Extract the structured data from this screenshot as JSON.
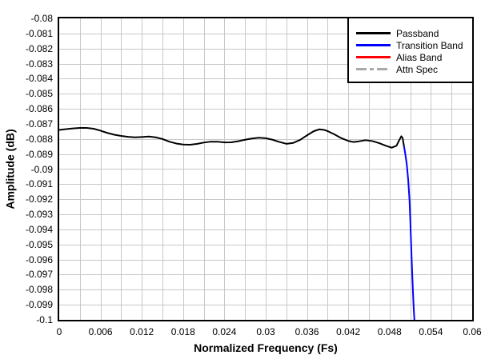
{
  "chart_data": {
    "type": "line",
    "title": "",
    "xlabel": "Normalized Frequency (Fs)",
    "ylabel": "Amplitude (dB)",
    "grid": true,
    "legend_position": "top-right",
    "axes": {
      "x": {
        "min": 0,
        "max": 0.06,
        "grid_step": 0.003,
        "tick_labels": [
          "0",
          "0.006",
          "0.012",
          "0.018",
          "0.024",
          "0.03",
          "0.036",
          "0.042",
          "0.048",
          "0.054",
          "0.06"
        ]
      },
      "y": {
        "min": -0.1,
        "max": -0.08,
        "grid_step": 0.001,
        "tick_labels": [
          "-0.08",
          "-0.081",
          "-0.082",
          "-0.083",
          "-0.084",
          "-0.085",
          "-0.086",
          "-0.087",
          "-0.088",
          "-0.089",
          "-0.09",
          "-0.091",
          "-0.092",
          "-0.093",
          "-0.094",
          "-0.095",
          "-0.096",
          "-0.097",
          "-0.098",
          "-0.099",
          "-0.1"
        ]
      }
    },
    "colors": {
      "grid": "#c8c8c8",
      "axis": "#000000",
      "background": "#ffffff",
      "passband": "#000000",
      "transition": "#0000ff",
      "alias": "#ff0000",
      "attn_spec": "#a9a9a9"
    },
    "legend": [
      {
        "id": "passband",
        "label": "Passband",
        "color": "#000000",
        "dash": "solid"
      },
      {
        "id": "transition",
        "label": "Transition Band",
        "color": "#0000ff",
        "dash": "solid"
      },
      {
        "id": "alias",
        "label": "Alias Band",
        "color": "#ff0000",
        "dash": "solid"
      },
      {
        "id": "attn",
        "label": "Attn Spec",
        "color": "#a9a9a9",
        "dash": "dashdot"
      }
    ],
    "series": [
      {
        "id": "passband",
        "name": "Passband",
        "color": "#000000",
        "points": [
          [
            0.0,
            -0.0874
          ],
          [
            0.001,
            -0.08735
          ],
          [
            0.002,
            -0.0873
          ],
          [
            0.003,
            -0.08727
          ],
          [
            0.004,
            -0.08727
          ],
          [
            0.005,
            -0.08732
          ],
          [
            0.006,
            -0.08745
          ],
          [
            0.007,
            -0.0876
          ],
          [
            0.008,
            -0.08772
          ],
          [
            0.009,
            -0.0878
          ],
          [
            0.01,
            -0.08786
          ],
          [
            0.011,
            -0.08789
          ],
          [
            0.012,
            -0.08787
          ],
          [
            0.013,
            -0.08784
          ],
          [
            0.014,
            -0.08789
          ],
          [
            0.015,
            -0.088
          ],
          [
            0.016,
            -0.08818
          ],
          [
            0.017,
            -0.0883
          ],
          [
            0.018,
            -0.08837
          ],
          [
            0.019,
            -0.08838
          ],
          [
            0.02,
            -0.08833
          ],
          [
            0.021,
            -0.08824
          ],
          [
            0.022,
            -0.08818
          ],
          [
            0.023,
            -0.08818
          ],
          [
            0.024,
            -0.08823
          ],
          [
            0.025,
            -0.08822
          ],
          [
            0.026,
            -0.08815
          ],
          [
            0.027,
            -0.08805
          ],
          [
            0.028,
            -0.08797
          ],
          [
            0.029,
            -0.08792
          ],
          [
            0.03,
            -0.08795
          ],
          [
            0.031,
            -0.08805
          ],
          [
            0.032,
            -0.0882
          ],
          [
            0.033,
            -0.08832
          ],
          [
            0.034,
            -0.08826
          ],
          [
            0.035,
            -0.08806
          ],
          [
            0.036,
            -0.08776
          ],
          [
            0.037,
            -0.08748
          ],
          [
            0.0378,
            -0.08736
          ],
          [
            0.0385,
            -0.0874
          ],
          [
            0.039,
            -0.08748
          ],
          [
            0.04,
            -0.0877
          ],
          [
            0.041,
            -0.08795
          ],
          [
            0.042,
            -0.08813
          ],
          [
            0.0427,
            -0.0882
          ],
          [
            0.0435,
            -0.08816
          ],
          [
            0.0445,
            -0.08808
          ],
          [
            0.0455,
            -0.08814
          ],
          [
            0.0465,
            -0.08828
          ],
          [
            0.0475,
            -0.08846
          ],
          [
            0.0483,
            -0.08858
          ],
          [
            0.049,
            -0.08845
          ],
          [
            0.0494,
            -0.08808
          ],
          [
            0.0497,
            -0.08782
          ],
          [
            0.0499,
            -0.08795
          ],
          [
            0.0501,
            -0.0885
          ]
        ]
      },
      {
        "id": "transition",
        "name": "Transition Band",
        "color": "#0000ff",
        "points": [
          [
            0.0501,
            -0.0885
          ],
          [
            0.0503,
            -0.08905
          ],
          [
            0.0505,
            -0.0897
          ],
          [
            0.0507,
            -0.0907
          ],
          [
            0.0509,
            -0.0921
          ],
          [
            0.051,
            -0.0933
          ],
          [
            0.0511,
            -0.0946
          ],
          [
            0.0512,
            -0.0959
          ],
          [
            0.0513,
            -0.0971
          ],
          [
            0.0514,
            -0.0982
          ],
          [
            0.0515,
            -0.0992
          ],
          [
            0.0516,
            -0.1
          ]
        ]
      },
      {
        "id": "alias",
        "name": "Alias Band",
        "color": "#ff0000",
        "points": []
      },
      {
        "id": "attn",
        "name": "Attn Spec",
        "color": "#a9a9a9",
        "points": []
      }
    ]
  }
}
